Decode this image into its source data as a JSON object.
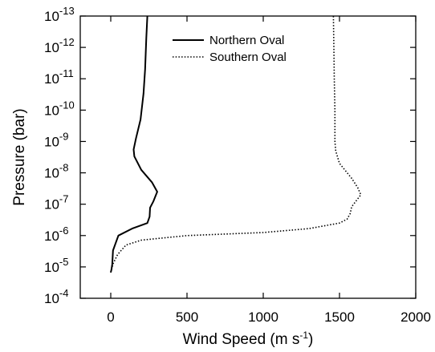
{
  "chart_data": {
    "type": "line",
    "title": "",
    "xlabel": "Wind Speed (m s",
    "xlabel_sup": "-1",
    "xlabel_end": ")",
    "ylabel": "Pressure (bar)",
    "xlim": [
      -200,
      2000
    ],
    "ylim": [
      0.0001,
      1e-13
    ],
    "y_scale": "log",
    "y_direction": "pressure decreases upward",
    "grid": false,
    "legend_position": "top-center",
    "x_ticks": [
      {
        "value": 0,
        "label": "0"
      },
      {
        "value": 500,
        "label": "500"
      },
      {
        "value": 1000,
        "label": "1000"
      },
      {
        "value": 1500,
        "label": "1500"
      },
      {
        "value": 2000,
        "label": "2000"
      }
    ],
    "y_ticks": [
      {
        "exp": -4,
        "base": "10",
        "sup": "-4"
      },
      {
        "exp": -5,
        "base": "10",
        "sup": "-5"
      },
      {
        "exp": -6,
        "base": "10",
        "sup": "-6"
      },
      {
        "exp": -7,
        "base": "10",
        "sup": "-7"
      },
      {
        "exp": -8,
        "base": "10",
        "sup": "-8"
      },
      {
        "exp": -9,
        "base": "10",
        "sup": "-9"
      },
      {
        "exp": -10,
        "base": "10",
        "sup": "-10"
      },
      {
        "exp": -11,
        "base": "10",
        "sup": "-11"
      },
      {
        "exp": -12,
        "base": "10",
        "sup": "-12"
      },
      {
        "exp": -13,
        "base": "10",
        "sup": "-13"
      }
    ],
    "series": [
      {
        "name": "Northern Oval",
        "style": "solid",
        "color": "#000000",
        "points": [
          [
            0,
            1.5e-05
          ],
          [
            5,
            1.2e-05
          ],
          [
            10,
            8e-06
          ],
          [
            15,
            3e-06
          ],
          [
            50,
            1e-06
          ],
          [
            140,
            6e-07
          ],
          [
            240,
            4e-07
          ],
          [
            255,
            2.5e-07
          ],
          [
            258,
            1.3e-07
          ],
          [
            280,
            8e-08
          ],
          [
            305,
            4e-08
          ],
          [
            270,
            2e-08
          ],
          [
            200,
            8e-09
          ],
          [
            155,
            3e-09
          ],
          [
            150,
            1.8e-09
          ],
          [
            165,
            8e-10
          ],
          [
            195,
            2e-10
          ],
          [
            215,
            3e-11
          ],
          [
            225,
            5e-12
          ],
          [
            233,
            5e-13
          ],
          [
            240,
            1e-13
          ]
        ]
      },
      {
        "name": "Southern Oval",
        "style": "dotted",
        "color": "#000000",
        "points": [
          [
            0,
            1.5e-05
          ],
          [
            15,
            8e-06
          ],
          [
            45,
            4e-06
          ],
          [
            100,
            2e-06
          ],
          [
            200,
            1.4e-06
          ],
          [
            500,
            1e-06
          ],
          [
            1000,
            8e-07
          ],
          [
            1300,
            6e-07
          ],
          [
            1500,
            4e-07
          ],
          [
            1550,
            3e-07
          ],
          [
            1570,
            2e-07
          ],
          [
            1580,
            1.2e-07
          ],
          [
            1640,
            5e-08
          ],
          [
            1620,
            3e-08
          ],
          [
            1580,
            1.5e-08
          ],
          [
            1500,
            5e-09
          ],
          [
            1475,
            2e-09
          ],
          [
            1470,
            1e-09
          ],
          [
            1470,
            1e-10
          ],
          [
            1466,
            1e-11
          ],
          [
            1463,
            1e-12
          ],
          [
            1460,
            1e-13
          ]
        ]
      }
    ]
  }
}
